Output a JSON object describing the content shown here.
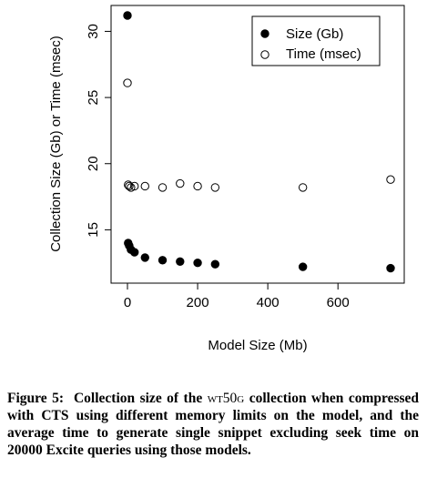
{
  "chart_data": {
    "type": "scatter",
    "xlabel": "Model Size (Mb)",
    "ylabel": "Collection Size (Gb) or Time (msec)",
    "xlim": [
      0,
      760
    ],
    "ylim": [
      11.5,
      32
    ],
    "x_ticks": [
      "0",
      "200",
      "400",
      "600"
    ],
    "y_ticks": [
      "15",
      "20",
      "25",
      "30"
    ],
    "legend_position": "top-right",
    "grid": false,
    "series": [
      {
        "name": "Size (Gb)",
        "marker": "filled-circle",
        "x": [
          0,
          2,
          5,
          10,
          20,
          50,
          100,
          150,
          200,
          250,
          500,
          750
        ],
        "y": [
          31.2,
          14.0,
          13.8,
          13.5,
          13.3,
          12.9,
          12.7,
          12.6,
          12.5,
          12.4,
          12.2,
          12.1
        ]
      },
      {
        "name": "Time (msec)",
        "marker": "open-circle",
        "x": [
          0,
          2,
          5,
          10,
          20,
          50,
          100,
          150,
          200,
          250,
          500,
          750
        ],
        "y": [
          26.1,
          18.4,
          18.3,
          18.2,
          18.3,
          18.3,
          18.2,
          18.5,
          18.3,
          18.2,
          18.2,
          18.8
        ]
      }
    ]
  },
  "caption": {
    "label": "Figure 5:",
    "text_before": "Collection size of the",
    "collection_name": "wt50g",
    "text_after": "collection when compressed with CTS using different memory limits on the model, and the average time to generate single snippet excluding seek time on 20000 Excite queries using those models."
  }
}
